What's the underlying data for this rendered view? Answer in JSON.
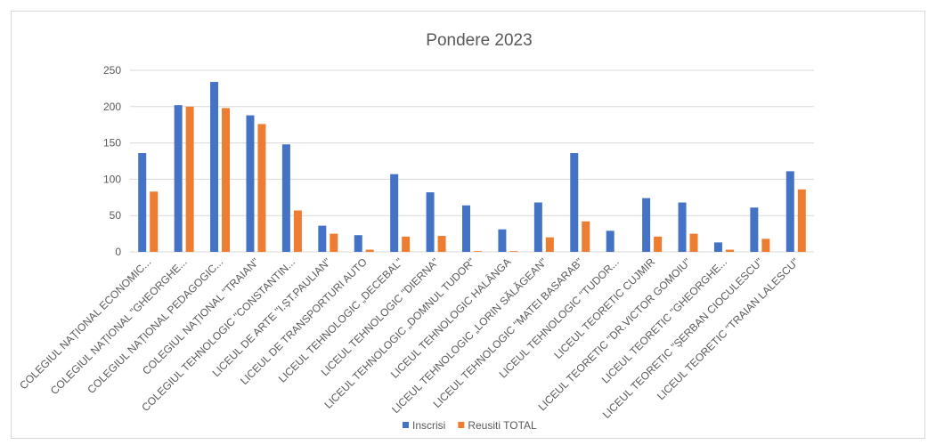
{
  "chart_data": {
    "type": "bar",
    "title": "Pondere 2023",
    "categories": [
      "COLEGIUL NAȚIONAL ECONOMIC...",
      "COLEGIUL NAȚIONAL \"GHEORGHE...",
      "COLEGIUL NAȚIONAL PEDAGOGIC...",
      "COLEGIUL NAȚIONAL \"TRAIAN\"",
      "COLEGIUL TEHNOLOGIC \"CONSTANTIN...",
      "LICEUL DE ARTE \"I.ȘT.PAULIAN\"",
      "LICEUL DE TRANSPORTURI AUTO",
      "LICEUL TEHNOLOGIC „DECEBAL\"",
      "LICEUL TEHNOLOGIC \"DIERNA\"",
      "LICEUL TEHNOLOGIC „DOMNUL TUDOR\"",
      "LICEUL TEHNOLOGIC HALÂNGA",
      "LICEUL TEHNOLOGIC „LORIN SĂLĂGEAN\"",
      "LICEUL TEHNOLOGIC \"MATEI BASARAB\"",
      "LICEUL TEHNOLOGIC \"TUDOR...",
      "LICEUL TEORETIC CUJMIR",
      "LICEUL TEORETIC \"DR.VICTOR GOMOIU\"",
      "LICEUL TEORETIC \"GHEORGHE...",
      "LICEUL TEORETIC \"ȘERBAN CIOCULESCU\"",
      "LICEUL TEORETIC \"TRAIAN LALESCU\""
    ],
    "series": [
      {
        "name": "Inscrisi",
        "color": "#4472c4",
        "values": [
          136,
          202,
          234,
          188,
          148,
          36,
          23,
          107,
          82,
          64,
          31,
          68,
          136,
          29,
          74,
          68,
          13,
          61,
          111
        ]
      },
      {
        "name": "Reusiti TOTAL",
        "color": "#ed7d31",
        "values": [
          83,
          200,
          198,
          176,
          57,
          25,
          3,
          21,
          22,
          1,
          1,
          20,
          42,
          0,
          21,
          25,
          3,
          18,
          86
        ]
      }
    ],
    "ylim": [
      0,
      250
    ],
    "yticks": [
      0,
      50,
      100,
      150,
      200,
      250
    ],
    "grid": true,
    "legend": "bottom"
  }
}
